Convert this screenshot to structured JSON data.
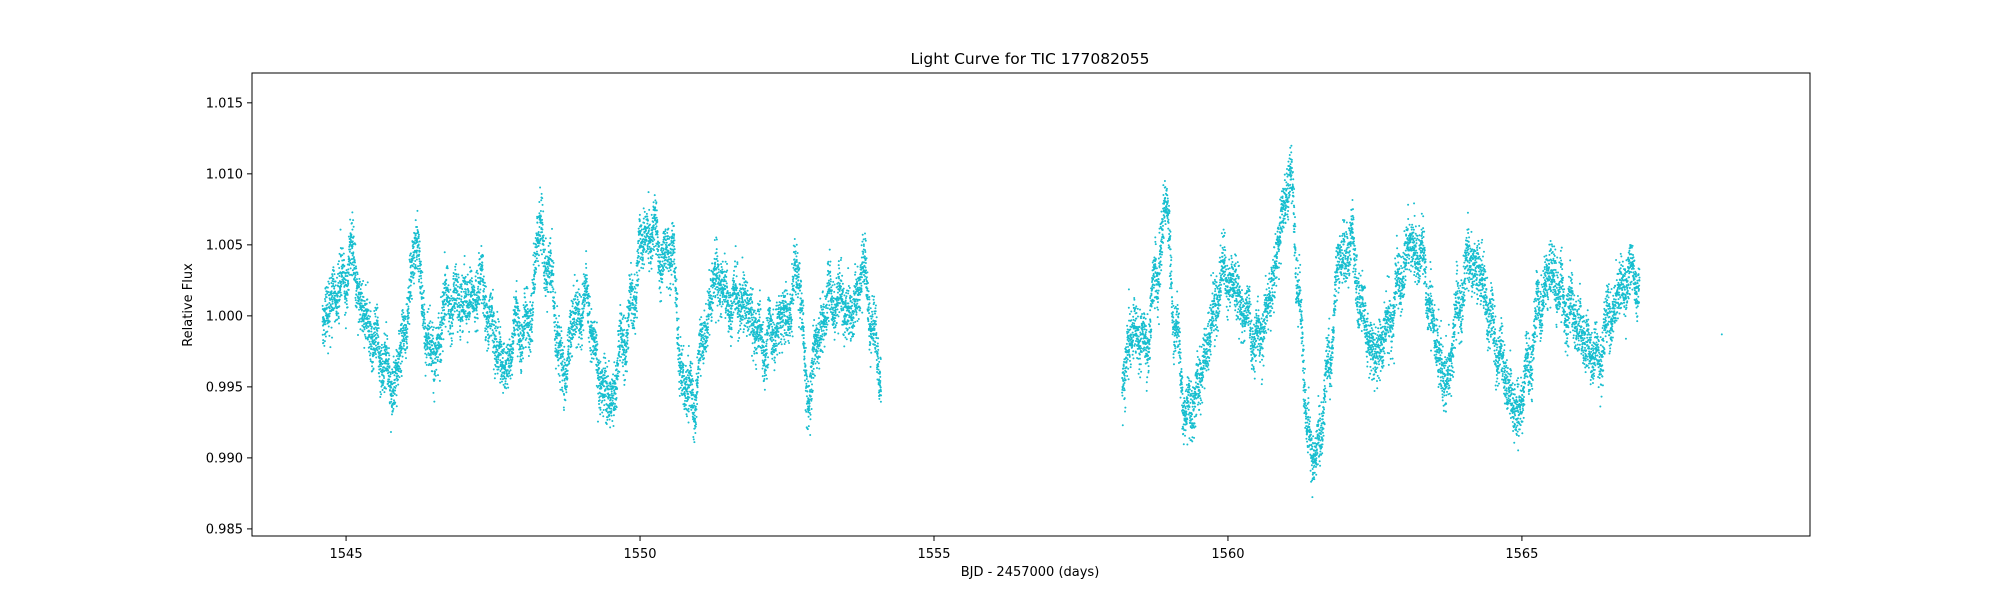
{
  "chart_data": {
    "type": "scatter",
    "title": "Light Curve for TIC 177082055",
    "xlabel": "BJD - 2457000 (days)",
    "ylabel": "Relative Flux",
    "xlim": [
      1543.4,
      1569.9
    ],
    "ylim": [
      0.9845,
      1.0171
    ],
    "xticks": [
      1545,
      1550,
      1555,
      1560,
      1565
    ],
    "xtick_labels": [
      "1545",
      "1550",
      "1555",
      "1560",
      "1565"
    ],
    "yticks": [
      0.985,
      0.99,
      0.995,
      1.0,
      1.005,
      1.01,
      1.015
    ],
    "ytick_labels": [
      "0.985",
      "0.990",
      "0.995",
      "1.000",
      "1.005",
      "1.010",
      "1.015"
    ],
    "grid": false,
    "marker_color": "#17becf",
    "marker_size": 1.5,
    "series": [
      {
        "segments": [
          {
            "x_range": [
              1544.6,
              1554.1
            ],
            "trend": [
              [
                1544.6,
                1.0
              ],
              [
                1544.9,
                1.002
              ],
              [
                1545.1,
                1.004
              ],
              [
                1545.3,
                1.0
              ],
              [
                1545.5,
                0.998
              ],
              [
                1545.7,
                0.996
              ],
              [
                1545.8,
                0.995
              ],
              [
                1546.0,
                0.999
              ],
              [
                1546.1,
                1.002
              ],
              [
                1546.2,
                1.006
              ],
              [
                1546.3,
                1.0
              ],
              [
                1546.5,
                0.997
              ],
              [
                1546.7,
                1.001
              ],
              [
                1546.9,
                1.001
              ],
              [
                1547.1,
                1.001
              ],
              [
                1547.3,
                1.002
              ],
              [
                1547.5,
                0.999
              ],
              [
                1547.7,
                0.996
              ],
              [
                1547.9,
                0.999
              ],
              [
                1548.1,
                0.999
              ],
              [
                1548.3,
                1.006
              ],
              [
                1548.45,
                1.003
              ],
              [
                1548.7,
                0.996
              ],
              [
                1548.9,
                1.0
              ],
              [
                1549.1,
                1.001
              ],
              [
                1549.3,
                0.996
              ],
              [
                1549.5,
                0.994
              ],
              [
                1549.7,
                0.998
              ],
              [
                1549.9,
                1.001
              ],
              [
                1550.0,
                1.005
              ],
              [
                1550.2,
                1.006
              ],
              [
                1550.4,
                1.004
              ],
              [
                1550.55,
                1.005
              ],
              [
                1550.7,
                0.996
              ],
              [
                1550.9,
                0.994
              ],
              [
                1551.1,
                0.999
              ],
              [
                1551.3,
                1.003
              ],
              [
                1551.5,
                1.001
              ],
              [
                1551.7,
                1.001
              ],
              [
                1551.9,
                1.0
              ],
              [
                1552.1,
                0.998
              ],
              [
                1552.3,
                0.999
              ],
              [
                1552.5,
                1.0
              ],
              [
                1552.7,
                1.003
              ],
              [
                1552.85,
                0.994
              ],
              [
                1553.0,
                0.998
              ],
              [
                1553.2,
                1.001
              ],
              [
                1553.4,
                1.001
              ],
              [
                1553.6,
                1.0
              ],
              [
                1553.8,
                1.003
              ],
              [
                1554.0,
                0.998
              ],
              [
                1554.1,
                0.996
              ]
            ],
            "scatter": 0.0018
          },
          {
            "x_range": [
              1558.2,
              1567.0
            ],
            "trend": [
              [
                1558.2,
                0.996
              ],
              [
                1558.4,
                0.999
              ],
              [
                1558.6,
                0.998
              ],
              [
                1558.8,
                1.003
              ],
              [
                1558.95,
                1.008
              ],
              [
                1559.1,
                0.999
              ],
              [
                1559.3,
                0.993
              ],
              [
                1559.5,
                0.995
              ],
              [
                1559.7,
                0.999
              ],
              [
                1559.9,
                1.003
              ],
              [
                1560.1,
                1.002
              ],
              [
                1560.3,
                1.0
              ],
              [
                1560.5,
                0.998
              ],
              [
                1560.7,
                1.001
              ],
              [
                1560.9,
                1.006
              ],
              [
                1561.05,
                1.01
              ],
              [
                1561.2,
                1.002
              ],
              [
                1561.35,
                0.992
              ],
              [
                1561.5,
                0.99
              ],
              [
                1561.7,
                0.996
              ],
              [
                1561.9,
                1.004
              ],
              [
                1562.1,
                1.005
              ],
              [
                1562.3,
                1.0
              ],
              [
                1562.5,
                0.997
              ],
              [
                1562.7,
                0.999
              ],
              [
                1562.9,
                1.002
              ],
              [
                1563.1,
                1.005
              ],
              [
                1563.3,
                1.004
              ],
              [
                1563.5,
                0.999
              ],
              [
                1563.7,
                0.995
              ],
              [
                1563.9,
                1.0
              ],
              [
                1564.1,
                1.004
              ],
              [
                1564.3,
                1.003
              ],
              [
                1564.5,
                0.999
              ],
              [
                1564.7,
                0.996
              ],
              [
                1564.9,
                0.993
              ],
              [
                1565.1,
                0.996
              ],
              [
                1565.3,
                1.001
              ],
              [
                1565.5,
                1.003
              ],
              [
                1565.7,
                1.001
              ],
              [
                1565.9,
                1.0
              ],
              [
                1566.1,
                0.998
              ],
              [
                1566.3,
                0.997
              ],
              [
                1566.5,
                1.0
              ],
              [
                1566.7,
                1.002
              ],
              [
                1566.9,
                1.003
              ],
              [
                1567.0,
                1.002
              ]
            ],
            "scatter": 0.0018
          }
        ],
        "isolated_points": [
          [
            1568.4,
            0.9987
          ]
        ]
      }
    ]
  }
}
